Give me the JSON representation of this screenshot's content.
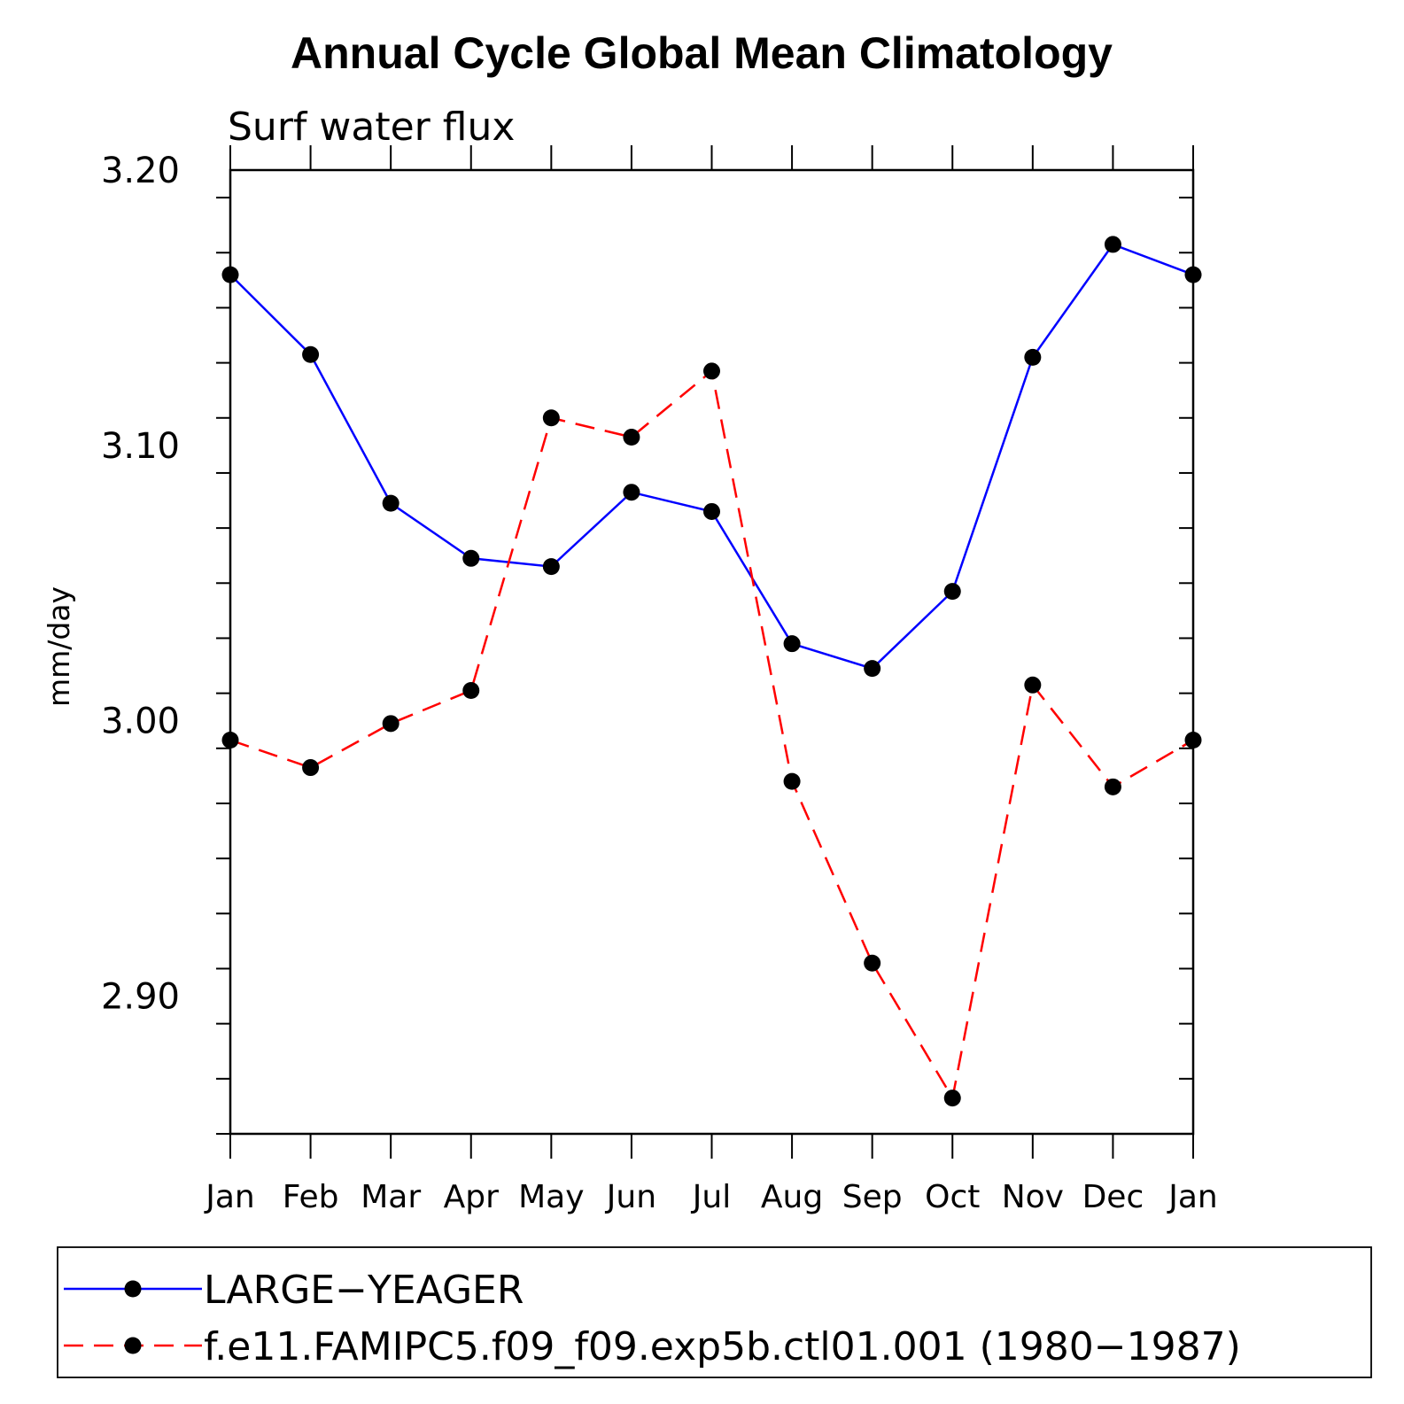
{
  "chart_data": {
    "type": "line",
    "title": "Annual Cycle Global Mean Climatology",
    "subtitle": "Surf water flux",
    "xlabel": "",
    "ylabel": "mm/day",
    "ylim": [
      2.85,
      3.2
    ],
    "yticks": [
      2.9,
      3.0,
      3.1,
      3.2
    ],
    "ytick_labels": [
      "2.90",
      "3.00",
      "3.10",
      "3.20"
    ],
    "categories": [
      "Jan",
      "Feb",
      "Mar",
      "Apr",
      "May",
      "Jun",
      "Jul",
      "Aug",
      "Sep",
      "Oct",
      "Nov",
      "Dec",
      "Jan"
    ],
    "grid": false,
    "legend_position": "bottom",
    "series": [
      {
        "name": "LARGE−YEAGER",
        "color": "#0000ff",
        "style": "solid",
        "marker": "filled-circle",
        "values": [
          3.162,
          3.133,
          3.079,
          3.059,
          3.056,
          3.083,
          3.076,
          3.028,
          3.019,
          3.047,
          3.132,
          3.173,
          3.162
        ]
      },
      {
        "name": "f.e11.FAMIPC5.f09_f09.exp5b.ctl01.001 (1980−1987)",
        "color": "#ff0000",
        "style": "dashed",
        "marker": "filled-circle",
        "values": [
          2.993,
          2.983,
          2.999,
          3.011,
          3.11,
          3.103,
          3.127,
          2.978,
          2.912,
          2.863,
          3.013,
          2.976,
          2.993
        ]
      }
    ]
  }
}
